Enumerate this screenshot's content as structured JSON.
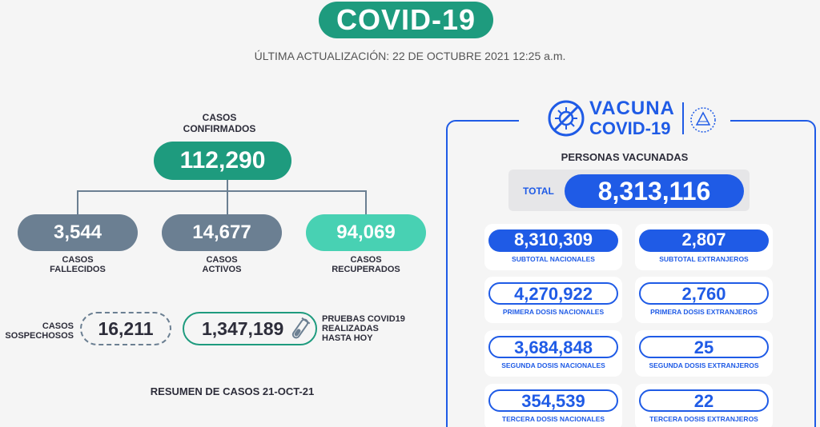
{
  "header": {
    "title": "COVID-19",
    "update": "ÚLTIMA ACTUALIZACIÓN: 22 DE OCTUBRE 2021 12:25 a.m."
  },
  "casos": {
    "confirmados_label_1": "CASOS",
    "confirmados_label_2": "CONFIRMADOS",
    "confirmados": "112,290",
    "fallecidos": "3,544",
    "fallecidos_label_1": "CASOS",
    "fallecidos_label_2": "FALLECIDOS",
    "activos": "14,677",
    "activos_label_1": "CASOS",
    "activos_label_2": "ACTIVOS",
    "recuperados": "94,069",
    "recuperados_label_1": "CASOS",
    "recuperados_label_2": "RECUPERADOS",
    "sospechosos_label_1": "CASOS",
    "sospechosos_label_2": "SOSPECHOSOS",
    "sospechosos": "16,211",
    "pruebas": "1,347,189",
    "pruebas_label_1": "PRUEBAS COVID19",
    "pruebas_label_2": "REALIZADAS",
    "pruebas_label_3": "HASTA HOY",
    "resumen": "RESUMEN DE CASOS 21-OCT-21"
  },
  "vacuna": {
    "logo_line_1": "VACUNA",
    "logo_line_2": "COVID-19",
    "personas": "PERSONAS VACUNADAS",
    "total_label": "TOTAL",
    "total": "8,313,116",
    "cards": [
      {
        "value": "8,310,309",
        "label": "SUBTOTAL NACIONALES"
      },
      {
        "value": "2,807",
        "label": "SUBTOTAL EXTRANJEROS"
      },
      {
        "value": "4,270,922",
        "label": "PRIMERA DOSIS NACIONALES"
      },
      {
        "value": "2,760",
        "label": "PRIMERA DOSIS EXTRANJEROS"
      },
      {
        "value": "3,684,848",
        "label": "SEGUNDA DOSIS NACIONALES"
      },
      {
        "value": "25",
        "label": "SEGUNDA DOSIS EXTRANJEROS"
      },
      {
        "value": "354,539",
        "label": "TERCERA DOSIS NACIONALES"
      },
      {
        "value": "22",
        "label": "TERCERA DOSIS EXTRANJEROS"
      }
    ]
  },
  "colors": {
    "green": "#1e9b7e",
    "slate": "#6b7f92",
    "mint": "#48d1b3",
    "blue": "#1f5be6"
  }
}
